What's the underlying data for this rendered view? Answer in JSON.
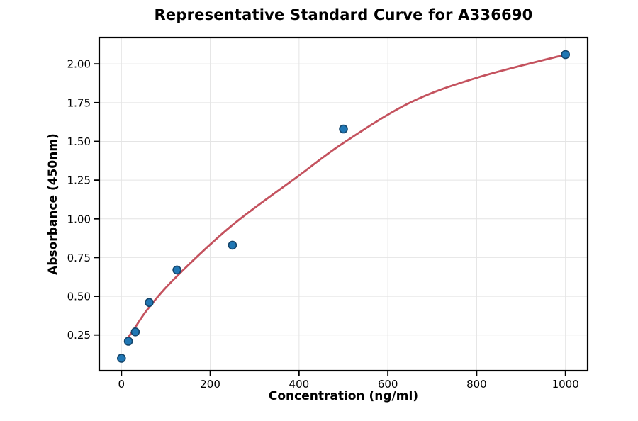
{
  "chart_data": {
    "type": "scatter",
    "title": "Representative Standard Curve for A336690",
    "xlabel": "Concentration (ng/ml)",
    "ylabel": "Absorbance (450nm)",
    "xlim": [
      -50,
      1050
    ],
    "ylim": [
      0.02,
      2.17
    ],
    "x_ticks": [
      0,
      200,
      400,
      600,
      800,
      1000
    ],
    "y_ticks": [
      0.25,
      0.5,
      0.75,
      1.0,
      1.25,
      1.5,
      1.75,
      2.0
    ],
    "grid": true,
    "legend_position": "none",
    "series": [
      {
        "name": "standard-points",
        "type": "scatter",
        "x": [
          0,
          15.6,
          31.25,
          62.5,
          125,
          250,
          500,
          1000
        ],
        "y": [
          0.1,
          0.21,
          0.27,
          0.46,
          0.67,
          0.83,
          1.58,
          2.06
        ]
      },
      {
        "name": "fit-curve",
        "type": "line",
        "x": [
          13,
          31,
          62.5,
          125,
          250,
          400,
          500,
          650,
          800,
          1000
        ],
        "y": [
          0.225,
          0.3,
          0.43,
          0.63,
          0.96,
          1.28,
          1.49,
          1.75,
          1.91,
          2.06
        ]
      }
    ],
    "colors": {
      "point_fill": "#2077b4",
      "point_edge": "#15456a",
      "curve": "#c4525e",
      "grid": "#e4e4e4",
      "spine": "#000000",
      "background": "#ffffff",
      "text": "#000000"
    }
  }
}
